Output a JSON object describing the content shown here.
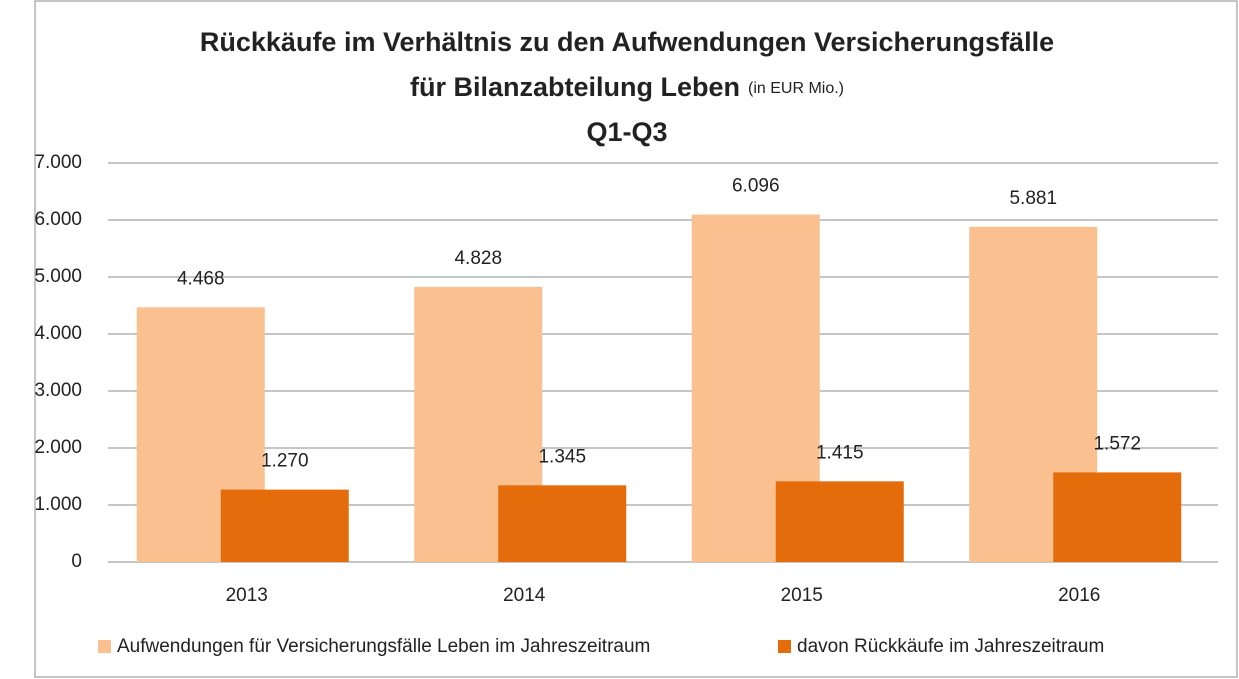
{
  "chart_data": {
    "type": "bar",
    "title": "Rückkäufe im Verhältnis zu den Aufwendungen Versicherungsfälle",
    "title_line2": "für Bilanzabteilung Leben",
    "title_unit": "(in EUR Mio.)",
    "subtitle": "Q1-Q3",
    "categories": [
      "2013",
      "2014",
      "2015",
      "2016"
    ],
    "series": [
      {
        "name": "Aufwendungen für Versicherungsfälle Leben im Jahreszeitraum",
        "color": "#fac090",
        "values": [
          4468,
          4828,
          6096,
          5881
        ],
        "value_labels": [
          "4.468",
          "4.828",
          "6.096",
          "5.881"
        ]
      },
      {
        "name": "davon Rückkäufe im Jahreszeitraum",
        "color": "#e46c0a",
        "values": [
          1270,
          1345,
          1415,
          1572
        ],
        "value_labels": [
          "1.270",
          "1.345",
          "1.415",
          "1.572"
        ]
      }
    ],
    "ylim": [
      0,
      7000
    ],
    "yticks": [
      0,
      {
        "value": 1000,
        "label": "1.000"
      },
      {
        "value": 2000,
        "label": "2.000"
      },
      {
        "value": 3000,
        "label": "3.000"
      },
      {
        "value": 4000,
        "label": "4.000"
      },
      {
        "value": 5000,
        "label": "5.000"
      },
      {
        "value": 6000,
        "label": "6.000"
      },
      {
        "value": 7000,
        "label": "7.000"
      }
    ],
    "grid": true,
    "legend": "bottom"
  }
}
